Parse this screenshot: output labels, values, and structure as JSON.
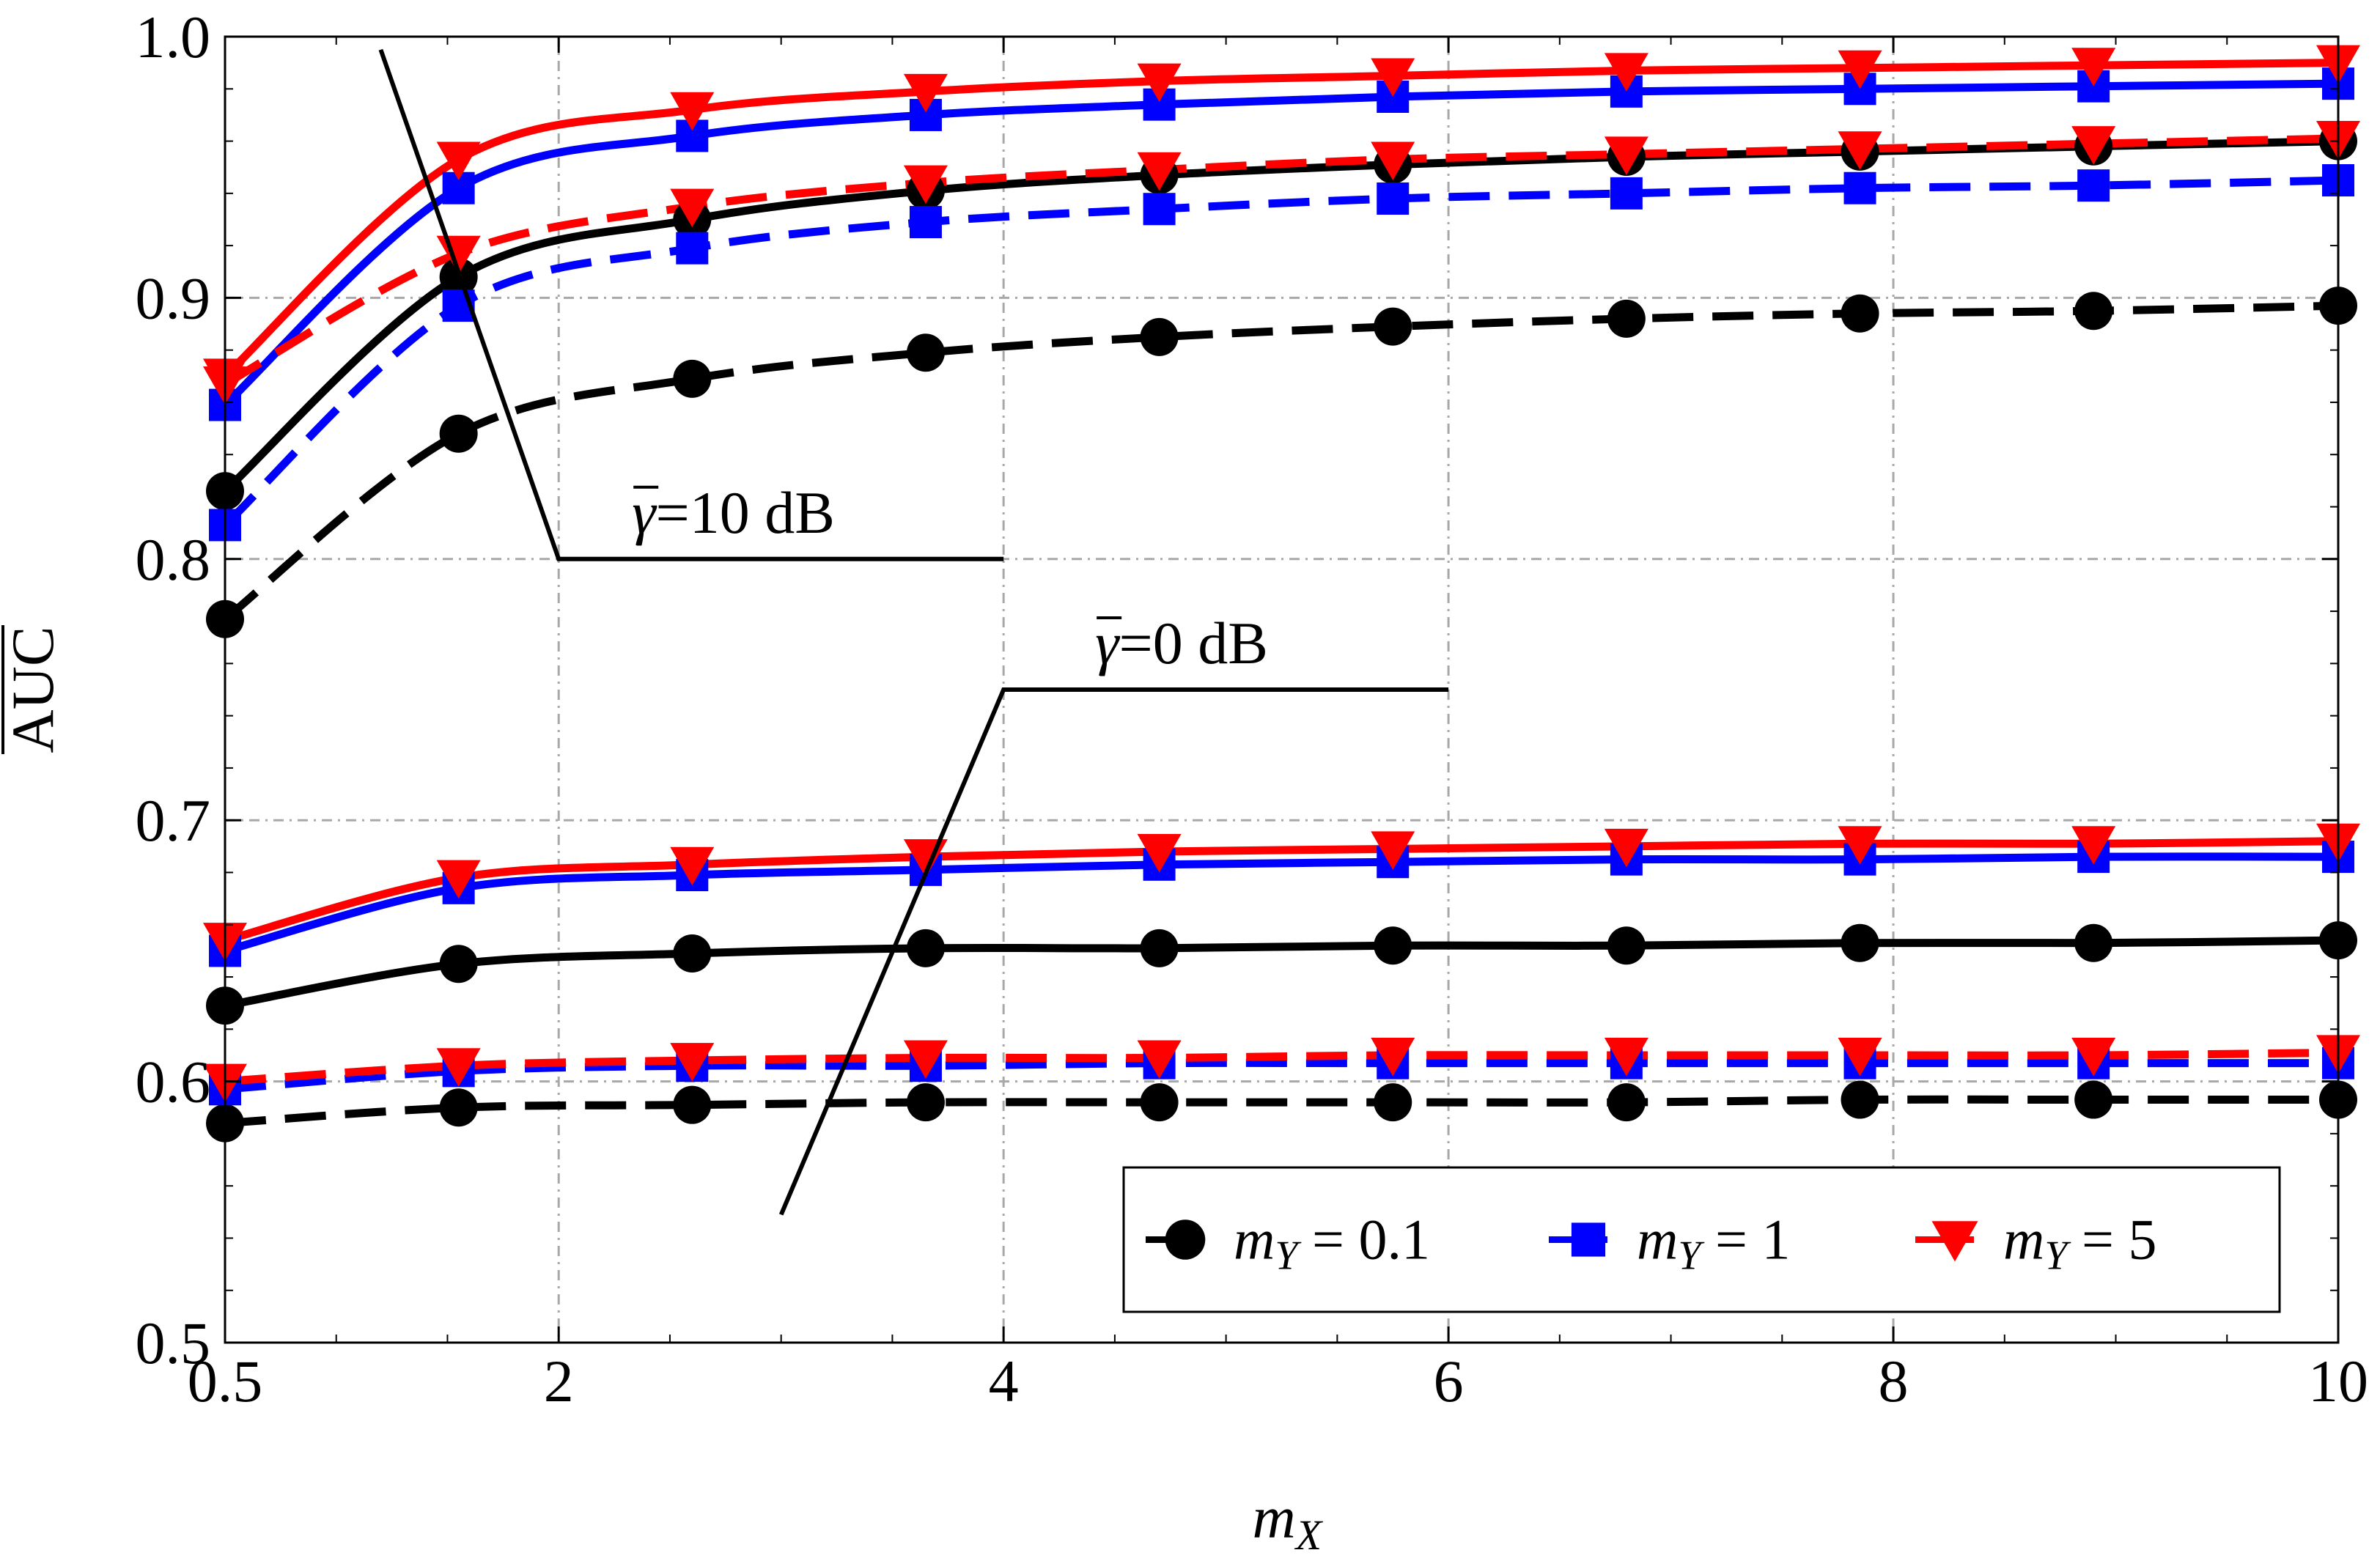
{
  "chart_data": {
    "type": "line",
    "title": "",
    "xlabel_base": "m",
    "xlabel_sub": "X",
    "ylabel": "AUC",
    "xlim": [
      0.5,
      10
    ],
    "ylim": [
      0.5,
      1.0
    ],
    "xticks": [
      0.5,
      2,
      4,
      6,
      8,
      10
    ],
    "xtick_labels": [
      "0.5",
      "2",
      "4",
      "6",
      "8",
      "10"
    ],
    "yticks": [
      0.5,
      0.6,
      0.7,
      0.8,
      0.9,
      1.0
    ],
    "ytick_labels": [
      "0.5",
      "0.6",
      "0.7",
      "0.8",
      "0.9",
      "1.0"
    ],
    "grid": true,
    "marker_x": [
      0.5,
      1.55,
      2.6,
      3.65,
      4.7,
      5.75,
      6.8,
      7.85,
      8.9,
      10
    ],
    "series": [
      {
        "name": "m_Y = 0.1, γ̄ = 10 dB",
        "group": "10 dB",
        "color": "#000000",
        "marker": "circle",
        "dashed": false,
        "values": [
          0.826,
          0.908,
          0.93,
          0.941,
          0.947,
          0.951,
          0.954,
          0.956,
          0.958,
          0.96
        ]
      },
      {
        "name": "m_Y = 1, γ̄ = 10 dB",
        "group": "10 dB",
        "color": "#0000ff",
        "marker": "square",
        "dashed": false,
        "values": [
          0.859,
          0.942,
          0.962,
          0.97,
          0.974,
          0.977,
          0.979,
          0.98,
          0.981,
          0.982
        ]
      },
      {
        "name": "m_Y = 5, γ̄ = 10 dB",
        "group": "10 dB",
        "color": "#ff0000",
        "marker": "triangle-down",
        "dashed": false,
        "values": [
          0.87,
          0.953,
          0.972,
          0.979,
          0.983,
          0.985,
          0.987,
          0.988,
          0.989,
          0.99
        ]
      },
      {
        "name": "m_Y = 0.1, γ̄ = 10 dB (dashed)",
        "group": "10 dB",
        "color": "#000000",
        "marker": "circle",
        "dashed": true,
        "values": [
          0.777,
          0.848,
          0.869,
          0.879,
          0.885,
          0.889,
          0.892,
          0.894,
          0.895,
          0.897
        ]
      },
      {
        "name": "m_Y = 1, γ̄ = 10 dB (dashed)",
        "group": "10 dB",
        "color": "#0000ff",
        "marker": "square",
        "dashed": true,
        "values": [
          0.813,
          0.897,
          0.919,
          0.929,
          0.934,
          0.938,
          0.94,
          0.942,
          0.943,
          0.945
        ]
      },
      {
        "name": "m_Y = 5, γ̄ = 10 dB (dashed)",
        "group": "10 dB",
        "color": "#ff0000",
        "marker": "triangle-down",
        "dashed": true,
        "values": [
          0.867,
          0.917,
          0.935,
          0.944,
          0.949,
          0.953,
          0.955,
          0.957,
          0.959,
          0.961
        ]
      },
      {
        "name": "m_Y = 0.1, γ̄ = 0 dB",
        "group": "0 dB",
        "color": "#000000",
        "marker": "circle",
        "dashed": false,
        "values": [
          0.629,
          0.645,
          0.649,
          0.651,
          0.651,
          0.652,
          0.652,
          0.653,
          0.653,
          0.654
        ]
      },
      {
        "name": "m_Y = 1, γ̄ = 0 dB",
        "group": "0 dB",
        "color": "#0000ff",
        "marker": "square",
        "dashed": false,
        "values": [
          0.65,
          0.674,
          0.679,
          0.681,
          0.683,
          0.684,
          0.685,
          0.685,
          0.686,
          0.686
        ]
      },
      {
        "name": "m_Y = 5, γ̄ = 0 dB",
        "group": "0 dB",
        "color": "#ff0000",
        "marker": "triangle-down",
        "dashed": false,
        "values": [
          0.654,
          0.678,
          0.683,
          0.686,
          0.688,
          0.689,
          0.69,
          0.691,
          0.691,
          0.692
        ]
      },
      {
        "name": "m_Y = 0.1, γ̄ = 0 dB (dashed)",
        "group": "0 dB",
        "color": "#000000",
        "marker": "circle",
        "dashed": true,
        "values": [
          0.584,
          0.59,
          0.591,
          0.592,
          0.592,
          0.592,
          0.592,
          0.593,
          0.593,
          0.593
        ]
      },
      {
        "name": "m_Y = 1, γ̄ = 0 dB (dashed)",
        "group": "0 dB",
        "color": "#0000ff",
        "marker": "square",
        "dashed": true,
        "values": [
          0.597,
          0.604,
          0.606,
          0.606,
          0.607,
          0.607,
          0.607,
          0.607,
          0.607,
          0.607
        ]
      },
      {
        "name": "m_Y = 5, γ̄ = 0 dB (dashed)",
        "group": "0 dB",
        "color": "#ff0000",
        "marker": "triangle-down",
        "dashed": true,
        "values": [
          0.6,
          0.606,
          0.608,
          0.609,
          0.609,
          0.61,
          0.61,
          0.61,
          0.61,
          0.611
        ]
      }
    ],
    "annotations": [
      {
        "text_value": "10",
        "text_unit": "dB",
        "line_points": [
          [
            1.2,
            0.995
          ],
          [
            2.0,
            0.8
          ],
          [
            4.0,
            0.8
          ]
        ]
      },
      {
        "text_value": "0",
        "text_unit": "dB",
        "line_points": [
          [
            3.0,
            0.549
          ],
          [
            4.0,
            0.75
          ],
          [
            6.0,
            0.75
          ]
        ]
      }
    ],
    "legend": {
      "position": "bottom-right",
      "entries": [
        {
          "label_prefix": "m",
          "label_sub": "Y",
          "label_value": "0.1",
          "color": "#000000",
          "marker": "circle"
        },
        {
          "label_prefix": "m",
          "label_sub": "Y",
          "label_value": "1",
          "color": "#0000ff",
          "marker": "square"
        },
        {
          "label_prefix": "m",
          "label_sub": "Y",
          "label_value": "5",
          "color": "#ff0000",
          "marker": "triangle-down"
        }
      ]
    }
  }
}
